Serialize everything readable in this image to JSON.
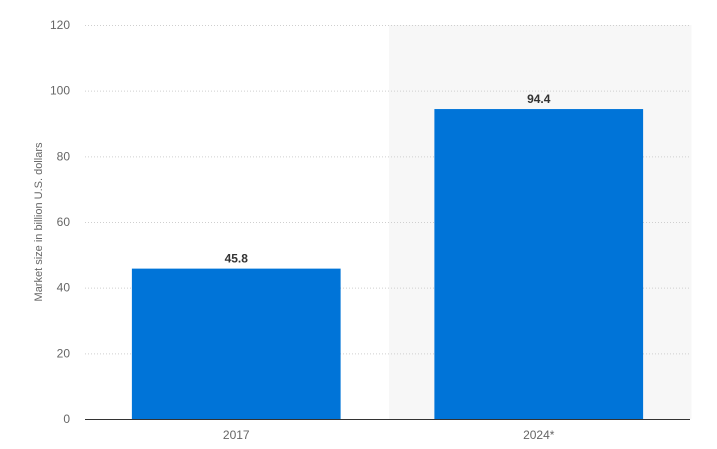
{
  "chart_data": {
    "type": "bar",
    "categories": [
      "2017",
      "2024*"
    ],
    "values": [
      45.8,
      94.4
    ],
    "value_labels": [
      "45.8",
      "94.4"
    ],
    "title": "",
    "xlabel": "",
    "ylabel": "Market size in billion U.S. dollars",
    "ylim": [
      0,
      120
    ],
    "yticks": [
      0,
      20,
      40,
      60,
      80,
      100,
      120
    ],
    "grid": true,
    "legend": "none",
    "bar_color": "#0074d8",
    "forecast_shade_color": "#f7f7f7",
    "shaded_categories": [
      "2024*"
    ]
  }
}
